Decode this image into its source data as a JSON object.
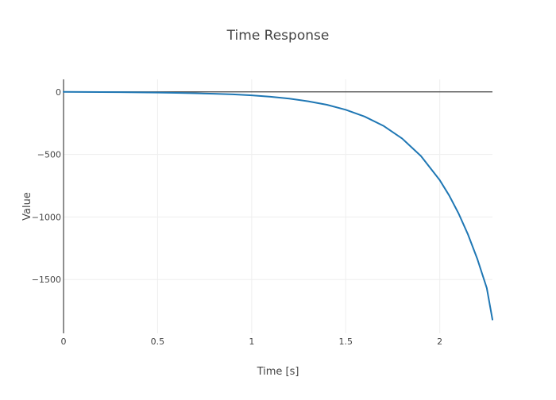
{
  "chart_data": {
    "type": "line",
    "title": "Time Response",
    "xlabel": "Time [s]",
    "ylabel": "Value",
    "xlim": [
      0,
      2.28
    ],
    "ylim": [
      -1930,
      100
    ],
    "x_ticks": [
      0,
      0.5,
      1,
      1.5,
      2
    ],
    "x_tick_labels": [
      "0",
      "0.5",
      "1",
      "1.5",
      "2"
    ],
    "y_ticks": [
      0,
      -500,
      -1000,
      -1500
    ],
    "y_tick_labels": [
      "0",
      "−500",
      "−1000",
      "−1500"
    ],
    "grid": true,
    "zero_line": true,
    "legend": "none",
    "line_color": "#1f77b4",
    "grid_color": "#eeeeee",
    "axis_color": "#444444",
    "series": [
      {
        "x": [
          0,
          0.1,
          0.2,
          0.3,
          0.4,
          0.5,
          0.6,
          0.7,
          0.8,
          0.9,
          1.0,
          1.1,
          1.2,
          1.3,
          1.4,
          1.5,
          1.6,
          1.7,
          1.8,
          1.9,
          2.0,
          2.05,
          2.1,
          2.15,
          2.2,
          2.25,
          2.28
        ],
        "y": [
          0,
          -0.5,
          -1.2,
          -2.2,
          -3.8,
          -5.5,
          -8,
          -11,
          -15,
          -20,
          -28,
          -39,
          -54,
          -75,
          -103,
          -143,
          -197,
          -271,
          -373,
          -513,
          -706,
          -828,
          -972,
          -1140,
          -1337,
          -1569,
          -1820
        ]
      }
    ]
  }
}
